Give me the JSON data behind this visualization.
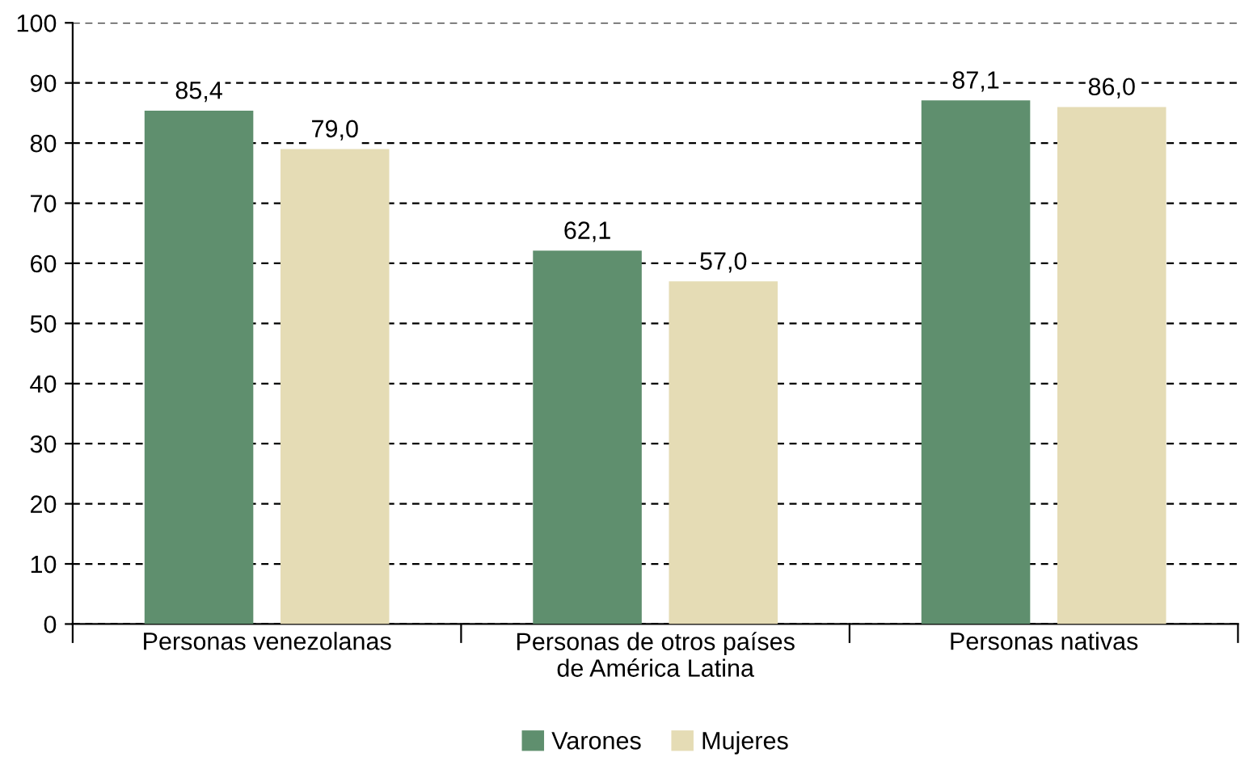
{
  "chart_data": {
    "type": "bar",
    "categories": [
      "Personas venezolanas",
      "Personas de otros países\nde América Latina",
      "Personas nativas"
    ],
    "series": [
      {
        "name": "Varones",
        "color": "#5f8f6e",
        "values": [
          85.4,
          62.1,
          87.1
        ],
        "value_labels": [
          "85,4",
          "62,1",
          "87,1"
        ]
      },
      {
        "name": "Mujeres",
        "color": "#e5dcb5",
        "values": [
          79.0,
          57.0,
          86.0
        ],
        "value_labels": [
          "79,0",
          "57,0",
          "86,0"
        ]
      }
    ],
    "ylim": [
      0,
      100
    ],
    "yticks": [
      0,
      10,
      20,
      30,
      40,
      50,
      60,
      70,
      80,
      90,
      100
    ],
    "grid": "y",
    "legend": "bottom"
  }
}
